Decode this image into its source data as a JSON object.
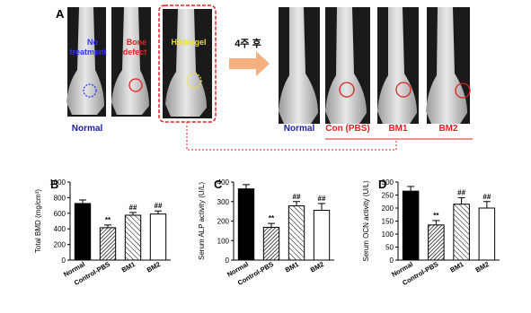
{
  "panel_a": {
    "label": "A",
    "overlays": [
      [
        "No",
        "treatment"
      ],
      [
        "Bone",
        "defect"
      ],
      [
        "Hydrogel"
      ]
    ],
    "time": "4주 후",
    "labels": [
      "Normal",
      "Normal",
      "Con (PBS)",
      "BM1",
      "BM2"
    ]
  },
  "chart_data": [
    {
      "type": "bar",
      "panel": "B",
      "y_label": "Total BMD (mg/cm³)",
      "categories": [
        "Normal",
        "Control-PBS",
        "BM1",
        "BM2"
      ],
      "values": [
        725,
        415,
        575,
        590
      ],
      "errors": [
        45,
        35,
        35,
        40
      ],
      "significance": [
        null,
        "**",
        "##",
        "##"
      ],
      "bar_styles": [
        "#000000",
        "hatch-dense",
        "hatch",
        "#ffffff"
      ],
      "ylim": [
        0,
        1000
      ],
      "yticks": [
        0,
        200,
        400,
        600,
        800,
        1000
      ]
    },
    {
      "type": "bar",
      "panel": "C",
      "y_label": "Serum ALP activity (U/L)",
      "categories": [
        "Normal",
        "Control-PBS",
        "BM1",
        "BM2"
      ],
      "values": [
        365,
        168,
        278,
        255
      ],
      "errors": [
        22,
        20,
        22,
        35
      ],
      "significance": [
        null,
        "**",
        "##",
        "##"
      ],
      "bar_styles": [
        "#000000",
        "hatch-dense",
        "hatch",
        "#ffffff"
      ],
      "ylim": [
        0,
        400
      ],
      "yticks": [
        0,
        100,
        200,
        300,
        400
      ]
    },
    {
      "type": "bar",
      "panel": "D",
      "y_label": "Serum OCN activity (U/L)",
      "categories": [
        "Normal",
        "Control-PBS",
        "BM1",
        "BM2"
      ],
      "values": [
        265,
        135,
        215,
        200
      ],
      "errors": [
        18,
        17,
        25,
        25
      ],
      "significance": [
        null,
        "**",
        "##",
        "##"
      ],
      "bar_styles": [
        "#000000",
        "hatch-dense",
        "hatch",
        "#ffffff"
      ],
      "ylim": [
        0,
        300
      ],
      "yticks": [
        0,
        50,
        100,
        150,
        200,
        250,
        300
      ]
    }
  ]
}
